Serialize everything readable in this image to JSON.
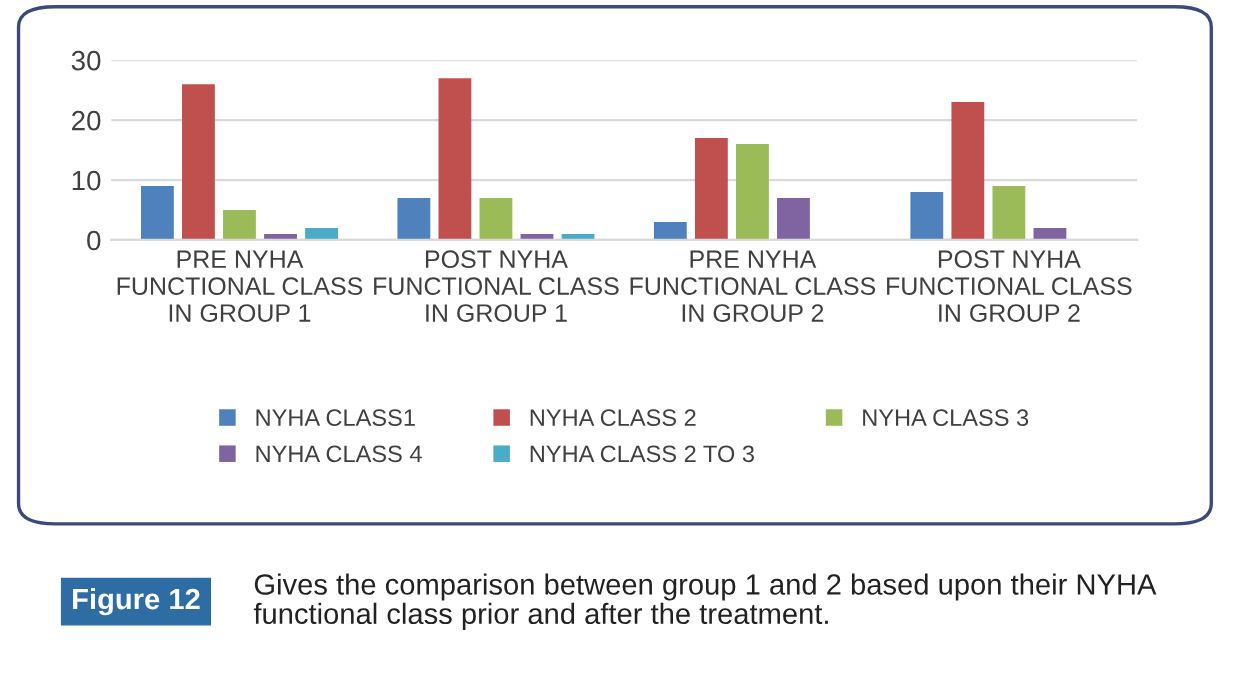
{
  "chart_data": {
    "type": "bar",
    "categories": [
      "PRE NYHA FUNCTIONAL CLASS IN GROUP 1",
      "POST NYHA FUNCTIONAL CLASS IN GROUP 1",
      "PRE NYHA FUNCTIONAL CLASS IN GROUP 2",
      "POST NYHA FUNCTIONAL CLASS IN GROUP 2"
    ],
    "series": [
      {
        "name": "NYHA CLASS1",
        "color": "#4f81bd",
        "values": [
          9,
          7,
          3,
          8
        ]
      },
      {
        "name": "NYHA CLASS 2",
        "color": "#c0504d",
        "values": [
          26,
          27,
          17,
          23
        ]
      },
      {
        "name": "NYHA CLASS 3",
        "color": "#9bbb59",
        "values": [
          5,
          7,
          16,
          9
        ]
      },
      {
        "name": "NYHA CLASS 4",
        "color": "#8064a2",
        "values": [
          1,
          1,
          7,
          2
        ]
      },
      {
        "name": "NYHA CLASS 2 TO 3",
        "color": "#4bacc6",
        "values": [
          2,
          1,
          null,
          null
        ]
      }
    ],
    "ylim": [
      0,
      30
    ],
    "yticks": [
      0,
      10,
      20,
      30
    ],
    "grid": "y",
    "legend": "bottom",
    "annotations": [
      "Figure 12",
      "Gives the comparison between group 1 and 2 based upon their NYHA functional class prior and after the treatment."
    ]
  }
}
